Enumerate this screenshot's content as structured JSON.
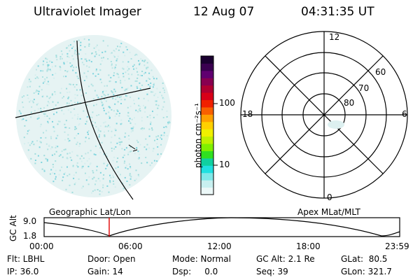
{
  "header": {
    "instrument": "Ultraviolet Imager",
    "date": "12 Aug 07",
    "time": "04:31:35 UT"
  },
  "colorbar": {
    "label": "photon cm⁻²s⁻¹",
    "ticks": [
      "100",
      "10"
    ],
    "colors": [
      "#1a0030",
      "#3a0050",
      "#600070",
      "#880050",
      "#b00030",
      "#d80018",
      "#f02000",
      "#f86000",
      "#ffa000",
      "#ffd000",
      "#f0f000",
      "#c0f000",
      "#80f000",
      "#30e020",
      "#10d0a0",
      "#20e0e0",
      "#80e8e8",
      "#c8f0f0",
      "#ecf8f8"
    ]
  },
  "polar_plot": {
    "hour_labels": [
      "12",
      "18",
      "6",
      "0"
    ],
    "lat_labels": [
      "60",
      "70",
      "80"
    ]
  },
  "altitude_strip": {
    "left_title": "Geographic Lat/Lon",
    "right_title": "Apex MLat/MLT",
    "y_label": "GC Alt",
    "y_ticks": [
      "9.0",
      "1.8"
    ],
    "x_ticks": [
      "00:00",
      "06:00",
      "12:00",
      "18:00",
      "23:59"
    ],
    "marker_color": "#e00000"
  },
  "info": {
    "flt": "Flt: LBHL",
    "ip": "IP: 36.0",
    "door": "Door: Open",
    "gain": "Gain: 14",
    "mode": "Mode: Normal",
    "dsp": "Dsp:     0.0",
    "gc_alt": "GC Alt: 2.1 Re",
    "seq": "Seq: 39",
    "glat": "GLat:  80.5",
    "glon": "GLon: 321.7"
  }
}
